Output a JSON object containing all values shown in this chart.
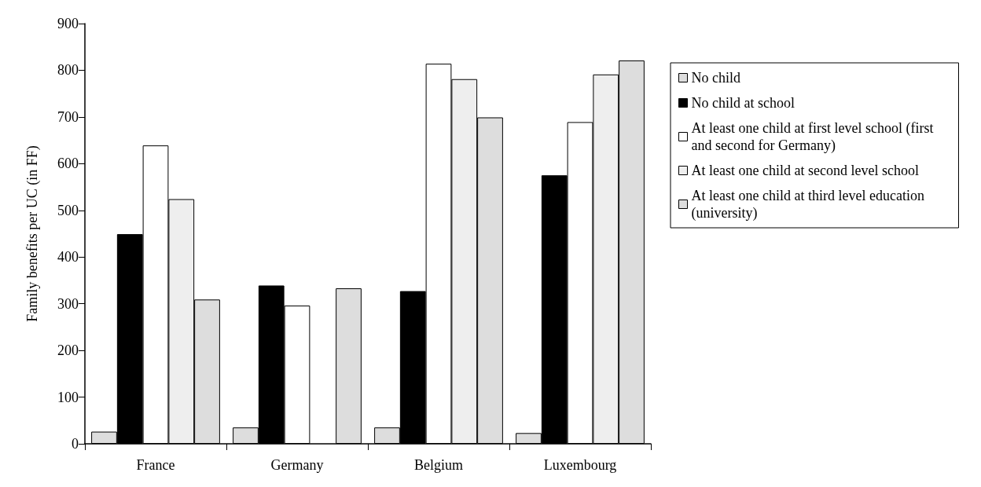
{
  "chart_data": {
    "type": "bar",
    "ylabel": "Family benefits per UC (in FF)",
    "categories": [
      "France",
      "Germany",
      "Belgium",
      "Luxembourg"
    ],
    "series": [
      {
        "name": "No child",
        "color": "#dddddd",
        "values": [
          26,
          35,
          35,
          23
        ]
      },
      {
        "name": "No child at school",
        "color": "#000000",
        "values": [
          449,
          339,
          327,
          575
        ]
      },
      {
        "name": "At least one child at first level school (first and second for Germany)",
        "color": "#ffffff",
        "values": [
          639,
          296,
          814,
          689
        ]
      },
      {
        "name": "At least one child at second level school",
        "color": "#eeeeee",
        "values": [
          524,
          null,
          781,
          791
        ]
      },
      {
        "name": "At least one child at third level education (university)",
        "color": "#dddddd",
        "values": [
          309,
          333,
          699,
          821
        ]
      }
    ],
    "ylim": [
      0,
      900
    ],
    "yticks": [
      0,
      100,
      200,
      300,
      400,
      500,
      600,
      700,
      800,
      900
    ],
    "grid": false,
    "legend": "right"
  }
}
